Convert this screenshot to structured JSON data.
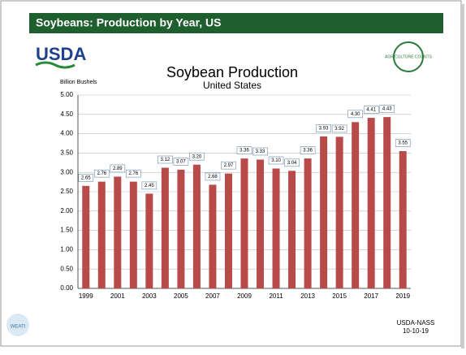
{
  "slide": {
    "header": "Soybeans: Production by Year, US",
    "logo_left": "USDA",
    "logo_right": "AGRICULTURE COUNTS",
    "footer_source": "USDA-NASS",
    "footer_date": "10-10-19",
    "footer_logo": "WEATI"
  },
  "chart_data": {
    "type": "bar",
    "title": "Soybean Production",
    "subtitle": "United States",
    "y_label": "Billion Bushels",
    "categories": [
      "1999",
      null,
      "2001",
      null,
      "2003",
      null,
      "2005",
      null,
      "2007",
      null,
      "2009",
      null,
      "2011",
      null,
      "2013",
      null,
      "2015",
      null,
      "2017",
      null,
      "2019"
    ],
    "values": [
      2.65,
      2.76,
      2.89,
      2.76,
      2.45,
      3.12,
      3.07,
      3.2,
      2.68,
      2.97,
      3.36,
      3.33,
      3.1,
      3.04,
      3.36,
      3.93,
      3.92,
      4.3,
      4.41,
      4.43,
      3.55
    ],
    "value_labels": [
      "2.65",
      "2.76",
      "2.89",
      "2.76",
      "2.45",
      "3.12",
      "3.07",
      "3.20",
      "2.68",
      "2.97",
      "3.36",
      "3.33",
      "3.10",
      "3.04",
      "3.36",
      "3.93",
      "3.92",
      "4.30",
      "4.41",
      "4.43",
      "3.55"
    ],
    "color": "#b94a4a",
    "ylim": [
      0,
      5
    ],
    "yticks": [
      {
        "value": 0,
        "label": "0.00"
      },
      {
        "value": 0.5,
        "label": "0.50"
      },
      {
        "value": 1,
        "label": "1.00"
      },
      {
        "value": 1.5,
        "label": "1.50"
      },
      {
        "value": 2,
        "label": "2.00"
      },
      {
        "value": 2.5,
        "label": "2.50"
      },
      {
        "value": 3,
        "label": "3.00"
      },
      {
        "value": 3.5,
        "label": "3.50"
      },
      {
        "value": 4,
        "label": "4.00"
      },
      {
        "value": 4.5,
        "label": "4.50"
      },
      {
        "value": 5,
        "label": "5.00"
      }
    ],
    "grid": true
  }
}
